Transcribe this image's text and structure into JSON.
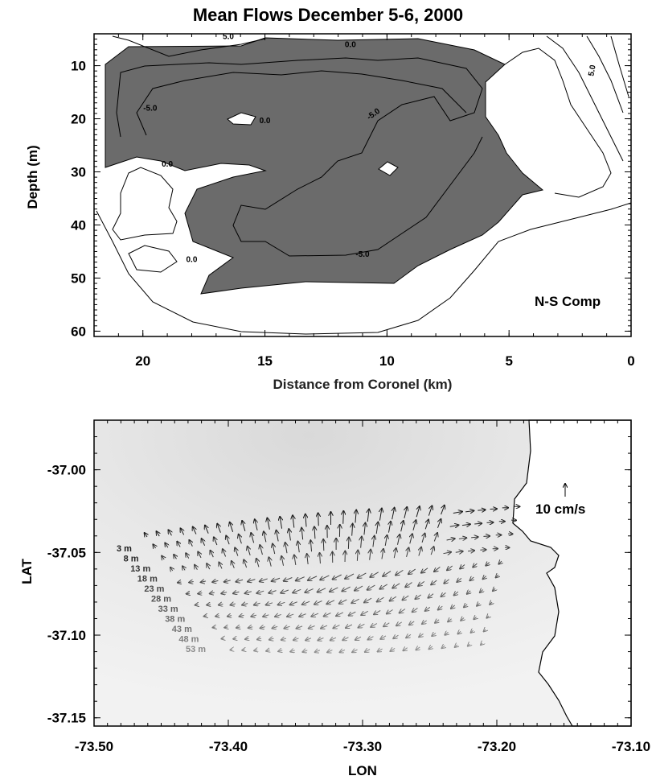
{
  "chart_data": [
    {
      "type": "contour",
      "title": "Mean Flows December 5-6, 2000",
      "xlabel": "Distance from Coronel (km)",
      "ylabel": "Depth (m)",
      "xlim": [
        22,
        0
      ],
      "ylim": [
        61,
        4
      ],
      "x_ticks": [
        "20",
        "15",
        "10",
        "5",
        "0"
      ],
      "y_ticks": [
        "10",
        "20",
        "30",
        "40",
        "50",
        "60"
      ],
      "annotation": "N-S Comp",
      "contour_labels": [
        "5.0",
        "0.0",
        "-5.0",
        "0.0",
        "-5.0",
        "0.0",
        "0.0",
        "-5.0",
        "5.0"
      ],
      "contour_levels": [
        -5.0,
        0.0,
        5.0
      ],
      "shading": "negative values shaded gray",
      "shade_color": "#6b6b6b"
    },
    {
      "type": "vector",
      "xlabel": "LON",
      "ylabel": "LAT",
      "xlim": [
        -73.5,
        -73.1
      ],
      "ylim": [
        -37.155,
        -36.97
      ],
      "x_ticks": [
        "-73.50",
        "-73.40",
        "-73.30",
        "-73.20",
        "-73.10"
      ],
      "y_ticks": [
        "-37.00",
        "-37.05",
        "-37.10",
        "-37.15"
      ],
      "scale_label": "10 cm/s",
      "depth_levels": [
        "3 m",
        "8 m",
        "13 m",
        "18 m",
        "23 m",
        "28 m",
        "33 m",
        "38 m",
        "43 m",
        "48 m",
        "53 m"
      ],
      "colors": {
        "shallow": "#1a1a1a",
        "deep": "#8a8a8a",
        "background": "#eeeeee",
        "land": "#ffffff"
      }
    }
  ]
}
